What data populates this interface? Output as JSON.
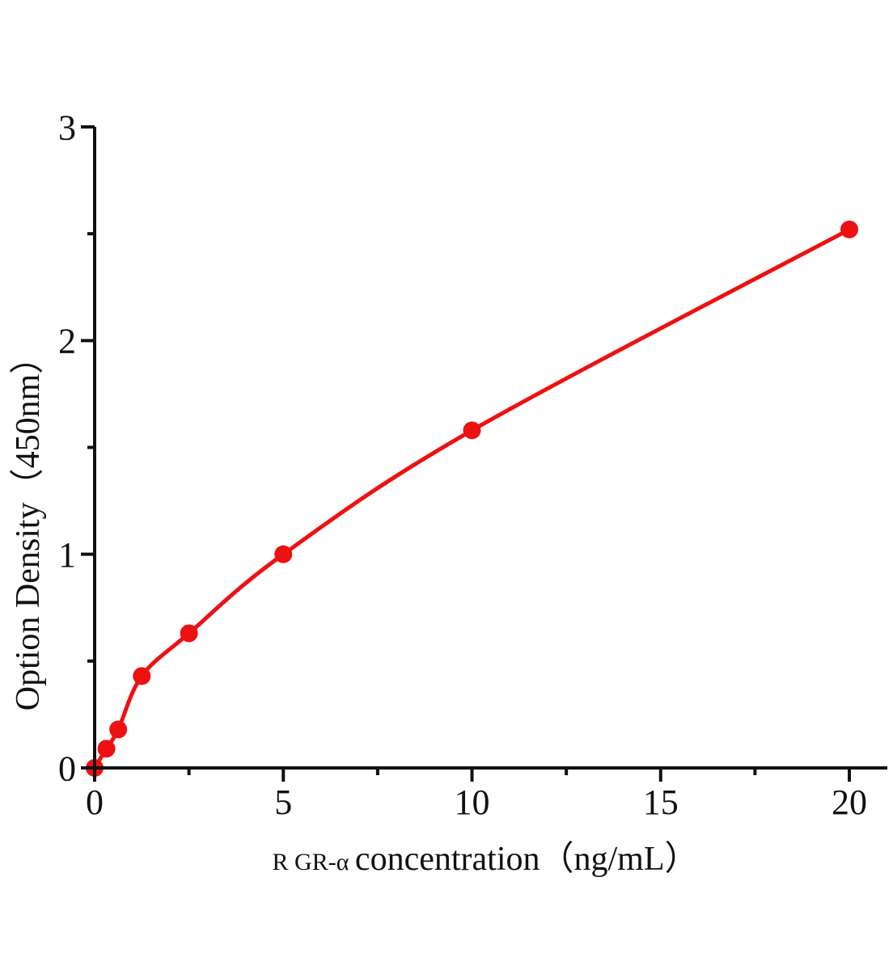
{
  "figure": {
    "background": "#ffffff"
  },
  "chart_data": {
    "type": "line",
    "title": "",
    "xlabel_prefix": "R GR-α ",
    "xlabel_main": "concentration（ng/mL）",
    "xlabel_full": "R GR-α concentration（ng/mL）",
    "ylabel": "Option Density（450nm）",
    "x": [
      0,
      0.313,
      0.625,
      1.25,
      2.5,
      5,
      10,
      20
    ],
    "y": [
      0,
      0.09,
      0.18,
      0.43,
      0.63,
      1.0,
      1.58,
      2.52
    ],
    "xlim": [
      0,
      20
    ],
    "ylim": [
      0,
      3
    ],
    "x_major_ticks": [
      0,
      5,
      10,
      15,
      20
    ],
    "x_minor_ticks": [
      2.5,
      7.5,
      12.5,
      17.5
    ],
    "y_major_ticks": [
      0,
      1,
      2,
      3
    ],
    "y_minor_ticks": [
      0.5,
      1.5,
      2.5
    ],
    "grid": false,
    "legend": "none",
    "marker": "circle",
    "line_color": "#ee1111",
    "marker_color": "#ee1111",
    "axis_color": "#111111"
  }
}
